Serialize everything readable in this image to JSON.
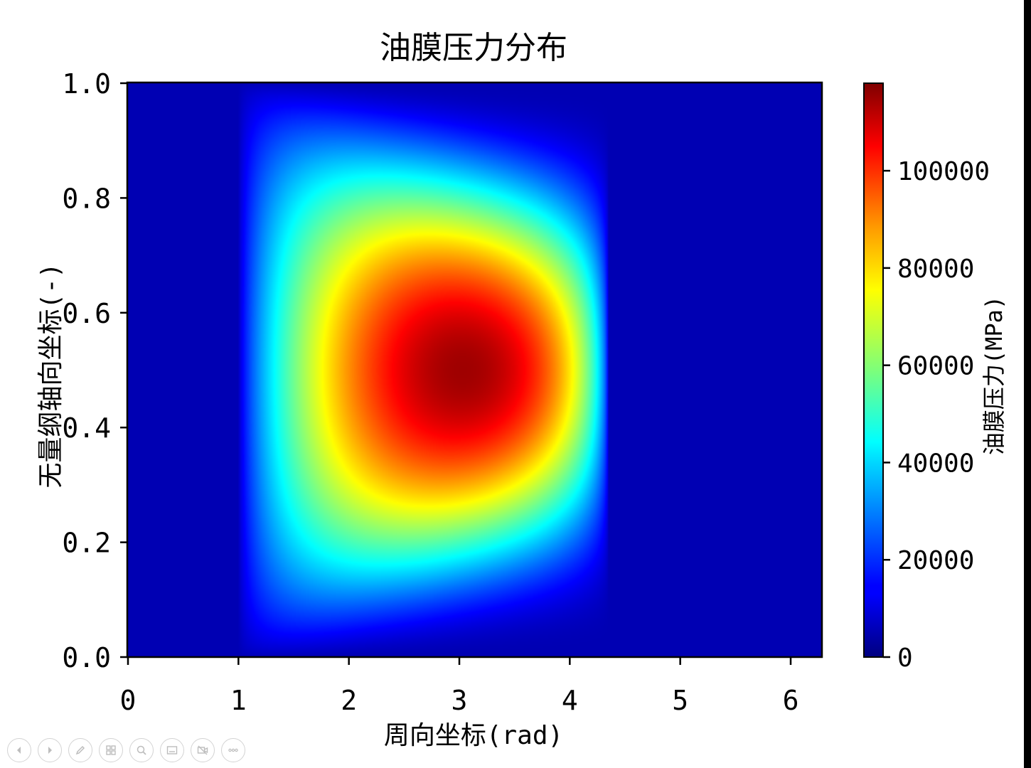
{
  "chart_data": {
    "type": "heatmap",
    "title": "油膜压力分布",
    "xlabel": "周向坐标(rad)",
    "ylabel": "无量纲轴向坐标(-)",
    "xlim": [
      0,
      6.2832
    ],
    "ylim": [
      0,
      1
    ],
    "x_ticks": [
      0,
      1,
      2,
      3,
      4,
      5,
      6
    ],
    "y_ticks": [
      "0.0",
      "0.2",
      "0.4",
      "0.6",
      "0.8",
      "1.0"
    ],
    "colormap": "jet",
    "colorbar": {
      "label": "油膜压力(MPa)",
      "range": [
        0,
        118000
      ],
      "ticks": [
        0,
        20000,
        40000,
        60000,
        80000,
        100000
      ]
    },
    "pressure_region": {
      "theta_start": 1.0,
      "theta_end": 4.35,
      "peak_theta": 3.6,
      "peak_z": 0.5,
      "max_pressure": 118000
    },
    "legend": "colorbar-right",
    "grid": false
  },
  "toolbar": {
    "buttons": [
      {
        "icon": "previous-icon"
      },
      {
        "icon": "next-icon"
      },
      {
        "icon": "pen-icon"
      },
      {
        "icon": "slides-icon"
      },
      {
        "icon": "zoom-icon"
      },
      {
        "icon": "subtitles-icon"
      },
      {
        "icon": "camera-off-icon"
      },
      {
        "icon": "more-icon"
      }
    ]
  }
}
